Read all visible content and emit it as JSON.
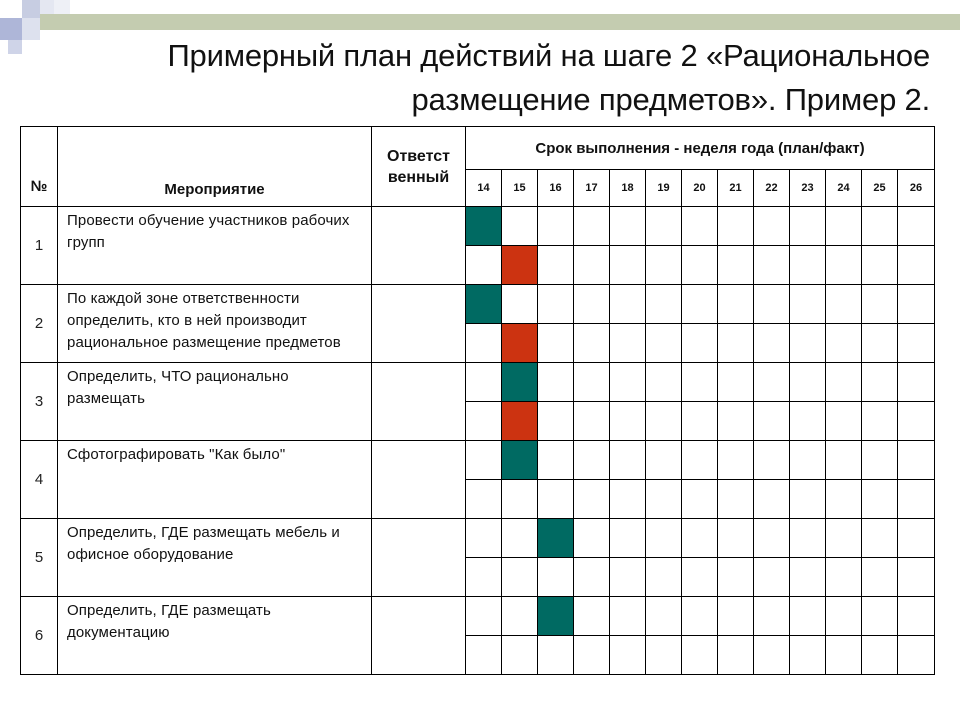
{
  "title_line1": "Примерный план действий на шаге 2 «Рациональное",
  "title_line2": "размещение предметов». Пример 2.",
  "table": {
    "header_num": "№",
    "header_event": "Мероприятие",
    "header_resp": "Ответст венный",
    "header_schedule": "Срок выполнения - неделя года (план/факт)",
    "weeks": [
      "14",
      "15",
      "16",
      "17",
      "18",
      "19",
      "20",
      "21",
      "22",
      "23",
      "24",
      "25",
      "26"
    ],
    "colors": {
      "plan": "#006a62",
      "fact": "#cc3311"
    },
    "rows": [
      {
        "num": "1",
        "event": "Провести обучение участников рабочих групп",
        "plan_weeks": [
          "14"
        ],
        "fact_weeks": [
          "15"
        ]
      },
      {
        "num": "2",
        "event": "По каждой зоне ответственности определить, кто в ней производит рациональное размещение предметов",
        "plan_weeks": [
          "14"
        ],
        "fact_weeks": [
          "15"
        ]
      },
      {
        "num": "3",
        "event": "Определить, ЧТО рационально размещать",
        "plan_weeks": [
          "15"
        ],
        "fact_weeks": [
          "15"
        ]
      },
      {
        "num": "4",
        "event": "Сфотографировать \"Как было\"",
        "plan_weeks": [
          "15"
        ],
        "fact_weeks": []
      },
      {
        "num": "5",
        "event": "Определить, ГДЕ размещать мебель и офисное оборудование",
        "plan_weeks": [
          "16"
        ],
        "fact_weeks": []
      },
      {
        "num": "6",
        "event": "Определить, ГДЕ размещать документацию",
        "plan_weeks": [
          "16"
        ],
        "fact_weeks": []
      }
    ]
  }
}
